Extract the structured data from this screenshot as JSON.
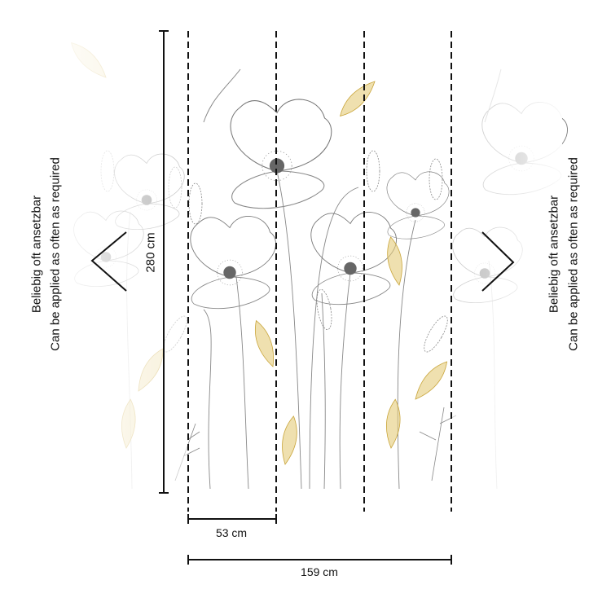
{
  "dimensions": {
    "height_label": "280 cm",
    "panel_width_label": "53 cm",
    "total_width_label": "159 cm"
  },
  "left_note": {
    "line1": "Beliebig oft ansetzbar",
    "line2": "Can be applied as often as required"
  },
  "right_note": {
    "line1": "Beliebig oft ansetzbar",
    "line2": "Can be applied as often as required"
  },
  "colors": {
    "line": "#111111",
    "flower_stroke": "#8a8a8a",
    "accent_yellow": "#d8b64a"
  },
  "panel_count": 3
}
